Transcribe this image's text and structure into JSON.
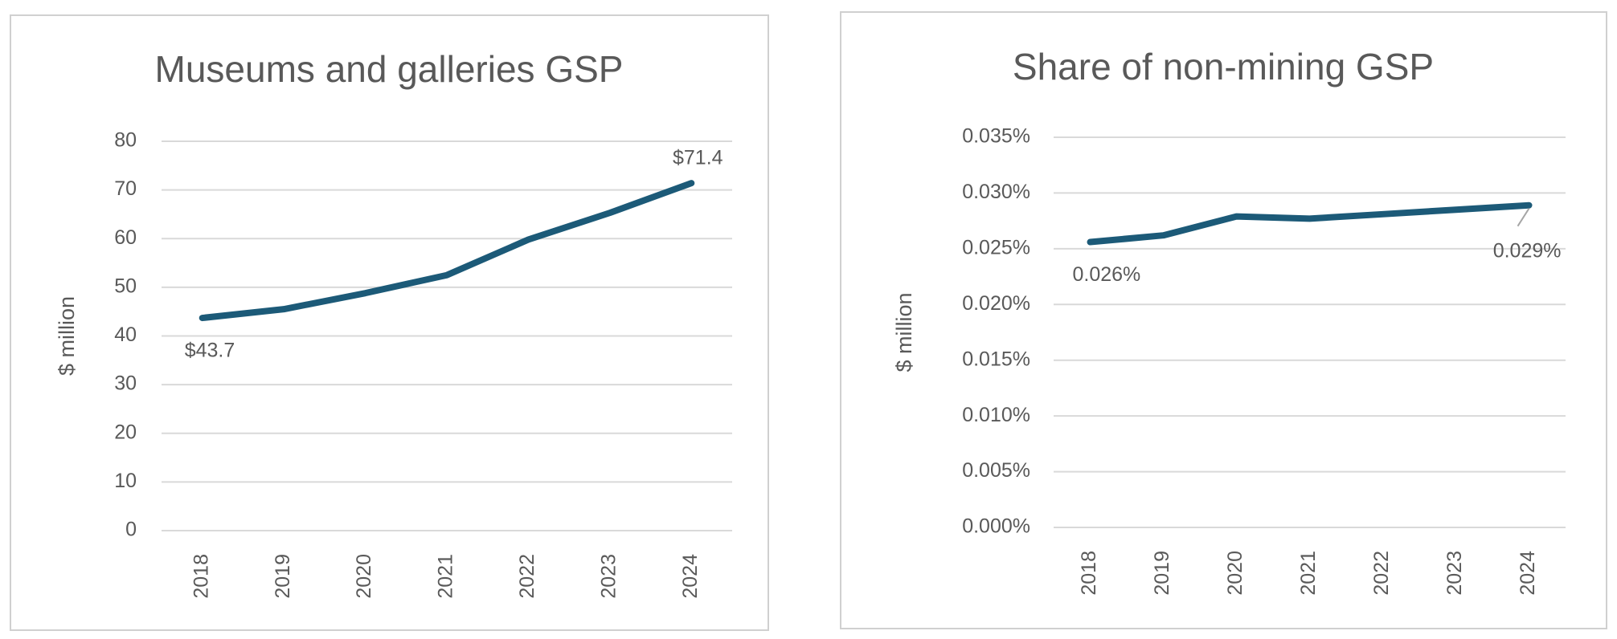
{
  "chart_data": [
    {
      "type": "line",
      "title": "Museums and galleries GSP",
      "y_label": "$ million",
      "categories": [
        "2018",
        "2019",
        "2020",
        "2021",
        "2022",
        "2023",
        "2024"
      ],
      "series": [
        {
          "color": "#1c5a78",
          "values": [
            43.7,
            45.5,
            48.8,
            52.5,
            59.8,
            65.3,
            71.4
          ],
          "value_labels": [
            "$43.7",
            null,
            null,
            null,
            null,
            null,
            "$71.4"
          ]
        }
      ],
      "ylim": [
        0,
        80
      ],
      "yticks": [
        0,
        10,
        20,
        30,
        40,
        50,
        60,
        70,
        80
      ],
      "grid": true
    },
    {
      "type": "line",
      "title": "Share of non-mining GSP",
      "y_label": "$ million",
      "categories": [
        "2018",
        "2019",
        "2020",
        "2021",
        "2022",
        "2023",
        "2024"
      ],
      "series": [
        {
          "color": "#1c5a78",
          "values": [
            0.0256,
            0.0262,
            0.0279,
            0.0277,
            0.0281,
            0.0285,
            0.0289
          ],
          "value_labels": [
            "0.026%",
            null,
            null,
            null,
            null,
            null,
            "0.029%"
          ]
        }
      ],
      "ylim": [
        0,
        0.035
      ],
      "yticks": [
        {
          "value": 0,
          "label": "0.000%"
        },
        {
          "value": 0.005,
          "label": "0.005%"
        },
        {
          "value": 0.01,
          "label": "0.010%"
        },
        {
          "value": 0.015,
          "label": "0.015%"
        },
        {
          "value": 0.02,
          "label": "0.020%"
        },
        {
          "value": 0.025,
          "label": "0.025%"
        },
        {
          "value": 0.03,
          "label": "0.030%"
        },
        {
          "value": 0.035,
          "label": "0.035%"
        }
      ],
      "grid": true
    }
  ]
}
